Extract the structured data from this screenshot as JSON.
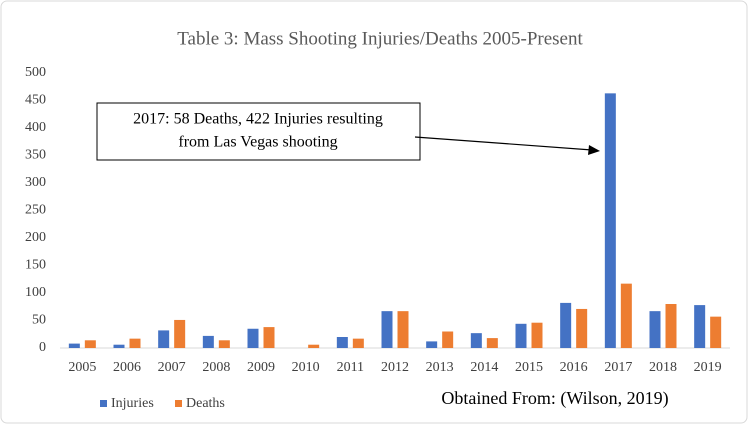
{
  "chart_data": {
    "type": "bar",
    "title": "Table 3: Mass Shooting Injuries/Deaths 2005-Present",
    "categories": [
      "2005",
      "2006",
      "2007",
      "2008",
      "2009",
      "2010",
      "2011",
      "2012",
      "2013",
      "2014",
      "2015",
      "2016",
      "2017",
      "2018",
      "2019"
    ],
    "series": [
      {
        "name": "Injuries",
        "color": "#4472c4",
        "values": [
          8,
          6,
          32,
          22,
          35,
          0,
          20,
          67,
          12,
          27,
          44,
          82,
          463,
          67,
          78
        ]
      },
      {
        "name": "Deaths",
        "color": "#ed7d31",
        "values": [
          14,
          17,
          51,
          14,
          38,
          6,
          17,
          67,
          30,
          18,
          46,
          71,
          117,
          80,
          57
        ]
      }
    ],
    "ylim": [
      0,
      500
    ],
    "yticks": [
      0,
      50,
      100,
      150,
      200,
      250,
      300,
      350,
      400,
      450,
      500
    ],
    "grid": false,
    "legend": "bottom-left",
    "annotations": [
      "2017: 58 Deaths, 422 Injuries resulting",
      "from Las Vegas shooting"
    ],
    "source": "Obtained From: (Wilson, 2019)"
  }
}
